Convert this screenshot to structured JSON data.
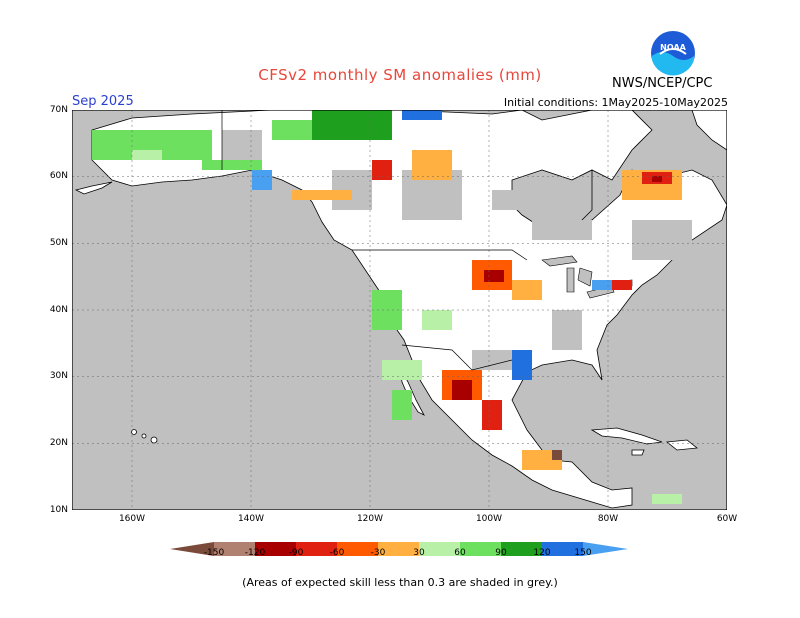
{
  "header": {
    "title": "CFSv2 monthly SM anomalies (mm)",
    "month": "Sep 2025",
    "initial_conditions": "Initial conditions: 1May2025-10May2025",
    "agency": "NWS/NCEP/CPC",
    "logo_text": "NOAA"
  },
  "map": {
    "lat_labels": [
      "70N",
      "60N",
      "50N",
      "40N",
      "30N",
      "20N",
      "10N"
    ],
    "lon_labels": [
      "160W",
      "140W",
      "120W",
      "100W",
      "80W",
      "60W"
    ],
    "ocean_color": "#c0c0c0",
    "land_color": "#ffffff",
    "grey_meaning": "expected skill less than 0.3"
  },
  "colorbar": {
    "tick_labels": [
      "-150",
      "-120",
      "-90",
      "-60",
      "-30",
      "30",
      "60",
      "90",
      "120",
      "150"
    ],
    "colors": [
      "#7a4a3a",
      "#b08070",
      "#a80000",
      "#e02010",
      "#ff5a00",
      "#ffb040",
      "#ffffff",
      "#b8f0a8",
      "#6ee060",
      "#1ea01e",
      "#2070e0",
      "#4aa0f0"
    ]
  },
  "footnote": "(Areas of expected skill less than 0.3 are shaded in grey.)"
}
